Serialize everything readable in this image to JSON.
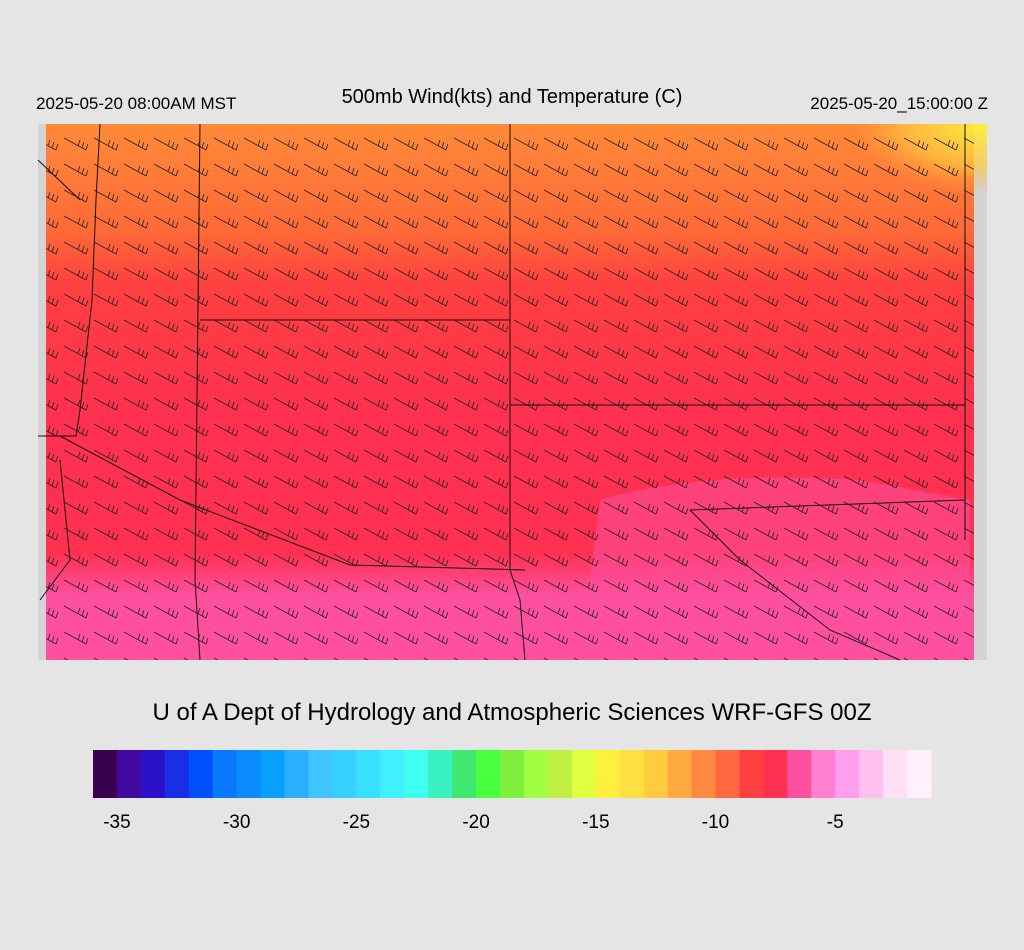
{
  "header": {
    "title": "500mb Wind(kts) and Temperature (C)",
    "valid_local": "2025-05-20 08:00AM MST",
    "valid_utc": "2025-05-20_15:00:00 Z"
  },
  "footer": {
    "credit": "U of A Dept of Hydrology and Atmospheric Sciences WRF-GFS 00Z"
  },
  "colorbar": {
    "lim": [
      -36,
      -1
    ],
    "ticks": [
      -35,
      -30,
      -25,
      -20,
      -15,
      -10,
      -5
    ],
    "colors": [
      "#3a0050",
      "#400aa0",
      "#2b12c8",
      "#1a2ee8",
      "#0050ff",
      "#0a78ff",
      "#0a8cff",
      "#0aa0ff",
      "#28b0ff",
      "#40c4ff",
      "#35d2ff",
      "#3ae0ff",
      "#40f0ff",
      "#40ffee",
      "#38f0c0",
      "#40e870",
      "#48ff40",
      "#80f040",
      "#a0ff40",
      "#c0f040",
      "#e0ff40",
      "#fff040",
      "#ffe040",
      "#ffcc40",
      "#ffaa40",
      "#ff8840",
      "#ff6840",
      "#ff4040",
      "#ff3050",
      "#ff50a0",
      "#ff80d0",
      "#ffa0ee",
      "#ffc0f0",
      "#ffe0f8",
      "#fff0fc"
    ]
  }
}
